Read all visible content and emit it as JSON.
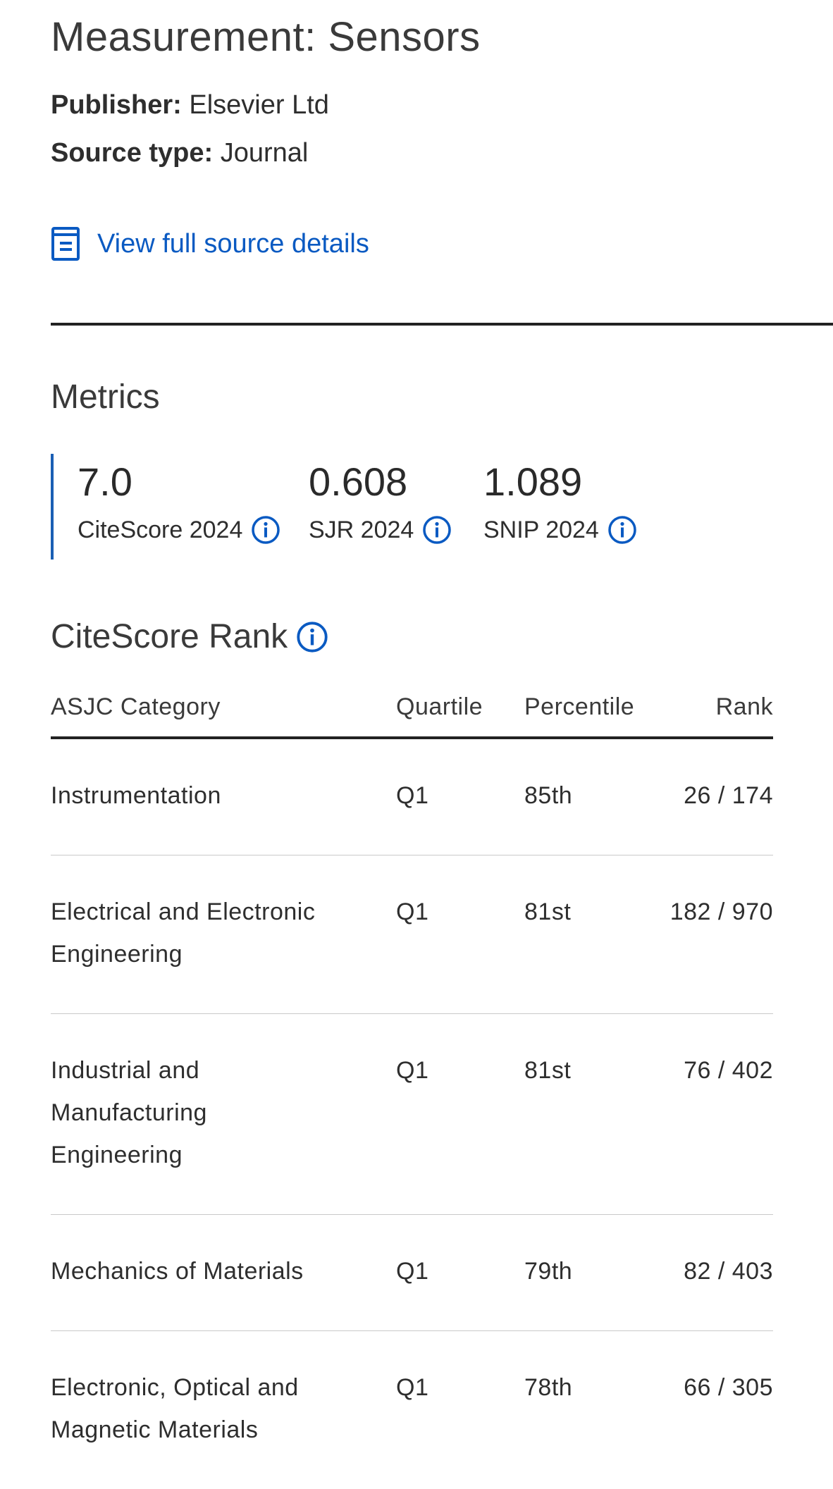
{
  "source": {
    "title": "Measurement: Sensors",
    "publisher_label": "Publisher:",
    "publisher_value": "Elsevier Ltd",
    "source_type_label": "Source type:",
    "source_type_value": "Journal",
    "view_details_label": "View full source details"
  },
  "metrics": {
    "title": "Metrics",
    "items": [
      {
        "value": "7.0",
        "label": "CiteScore 2024"
      },
      {
        "value": "0.608",
        "label": "SJR 2024"
      },
      {
        "value": "1.089",
        "label": "SNIP 2024"
      }
    ]
  },
  "citescore_rank": {
    "title": "CiteScore Rank",
    "headers": {
      "category": "ASJC Category",
      "quartile": "Quartile",
      "percentile": "Percentile",
      "rank": "Rank"
    },
    "rows": [
      {
        "category": "Instrumentation",
        "quartile": "Q1",
        "percentile": "85th",
        "rank": "26 / 174"
      },
      {
        "category": "Electrical and Electronic Engineering",
        "quartile": "Q1",
        "percentile": "81st",
        "rank": "182 / 970"
      },
      {
        "category": "Industrial and Manufacturing Engineering",
        "quartile": "Q1",
        "percentile": "81st",
        "rank": "76 / 402"
      },
      {
        "category": "Mechanics of Materials",
        "quartile": "Q1",
        "percentile": "79th",
        "rank": "82 / 403"
      },
      {
        "category": "Electronic, Optical and Magnetic Materials",
        "quartile": "Q1",
        "percentile": "78th",
        "rank": "66 / 305"
      }
    ]
  },
  "colors": {
    "link": "#0a5ac2",
    "accent_bar": "#1a5fb4",
    "text": "#2e2e2e",
    "divider": "#222222",
    "row_divider": "#c9c9c9"
  },
  "icons": {
    "view_details": "document-icon",
    "info": "info-icon"
  }
}
